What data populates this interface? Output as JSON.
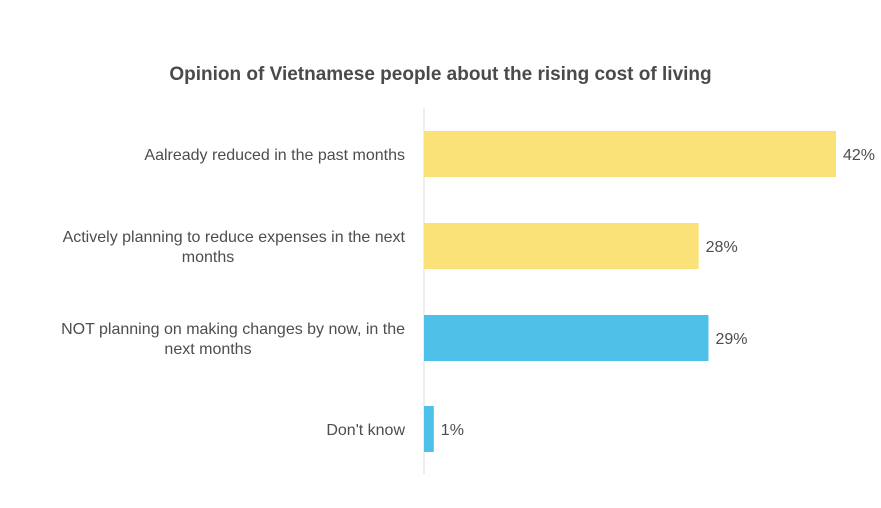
{
  "chart_data": {
    "type": "bar",
    "orientation": "horizontal",
    "title": "Opinion of Vietnamese people about the rising cost of living",
    "categories": [
      [
        "Aalready reduced in the past months"
      ],
      [
        "Actively planning to reduce expenses in the next",
        "months"
      ],
      [
        "NOT planning on making changes by now, in the",
        "next months"
      ],
      [
        "Don't know"
      ]
    ],
    "values": [
      42,
      28,
      29,
      1
    ],
    "value_labels": [
      "42%",
      "28%",
      "29%",
      "1%"
    ],
    "colors": [
      "#FAE278",
      "#FAE278",
      "#4FC1E9",
      "#4FC1E9"
    ],
    "xlim": [
      0,
      42
    ],
    "grid": false,
    "legend": "none"
  }
}
